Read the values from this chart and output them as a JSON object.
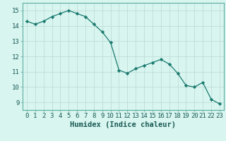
{
  "x": [
    0,
    1,
    2,
    3,
    4,
    5,
    6,
    7,
    8,
    9,
    10,
    11,
    12,
    13,
    14,
    15,
    16,
    17,
    18,
    19,
    20,
    21,
    22,
    23
  ],
  "y": [
    14.3,
    14.1,
    14.3,
    14.6,
    14.8,
    15.0,
    14.8,
    14.6,
    14.1,
    13.6,
    12.9,
    11.1,
    10.9,
    11.2,
    11.4,
    11.6,
    11.8,
    11.5,
    10.9,
    10.1,
    10.0,
    10.3,
    9.2,
    8.9
  ],
  "line_color": "#1a7a6e",
  "marker": "D",
  "marker_size": 2.2,
  "bg_color": "#d8f5f0",
  "grid_color": "#c0ddd8",
  "xlabel": "Humidex (Indice chaleur)",
  "xlim": [
    -0.5,
    23.5
  ],
  "ylim": [
    8.5,
    15.5
  ],
  "yticks": [
    9,
    10,
    11,
    12,
    13,
    14,
    15
  ],
  "xticks": [
    0,
    1,
    2,
    3,
    4,
    5,
    6,
    7,
    8,
    9,
    10,
    11,
    12,
    13,
    14,
    15,
    16,
    17,
    18,
    19,
    20,
    21,
    22,
    23
  ],
  "label_fontsize": 7.5,
  "tick_fontsize": 6.5
}
